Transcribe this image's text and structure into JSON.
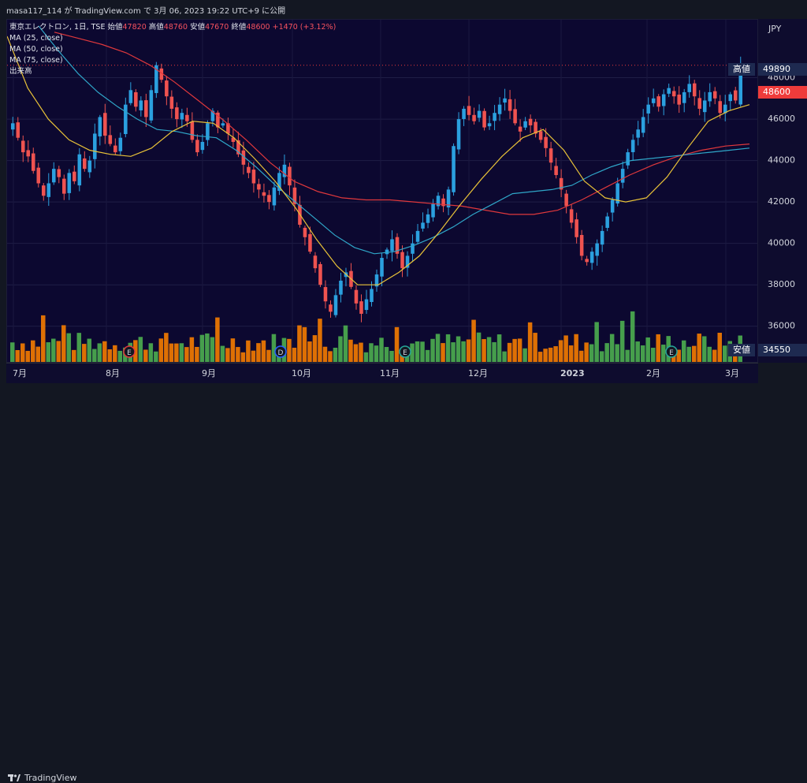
{
  "header": {
    "publish_line": "masa117_114 が TradingView.com で 3月 06, 2023 19:22 UTC+9 に公開"
  },
  "legend": {
    "symbol": "東京エレクトロン, 1日, TSE",
    "open_label": "始値",
    "open_value": "47820",
    "high_label": "高値",
    "high_value": "48760",
    "low_label": "安値",
    "low_value": "47670",
    "close_label": "終値",
    "close_value": "48600",
    "change": "+1470 (+3.12%)",
    "ma1": "MA (25, close)",
    "ma2": "MA (50, close)",
    "ma3": "MA (75, close)",
    "volume": "出来高"
  },
  "axis": {
    "currency": "JPY",
    "tag_high_label": "高値",
    "tag_high_value": "49890",
    "tag_last_value": "48600",
    "tag_low_label": "安値",
    "tag_low_value": "34550"
  },
  "footer": {
    "brand": "TradingView"
  },
  "colors": {
    "up": "#26a69a",
    "down": "#ef5350",
    "bull_body": "#2ba0df",
    "ma25": "#e8c238",
    "ma50": "#2fa6c8",
    "ma75": "#e0383c",
    "vol_up": "#4caf50",
    "vol_down": "#f57c00"
  },
  "chart_data": {
    "type": "candlestick",
    "title": "東京エレクトロン, 1日, TSE",
    "y_ticks": [
      36000,
      38000,
      40000,
      42000,
      44000,
      46000,
      48000
    ],
    "ylim": [
      34200,
      50800
    ],
    "x_ticks": [
      "7月",
      "8月",
      "9月",
      "10月",
      "11月",
      "12月",
      "2023",
      "2月",
      "3月"
    ],
    "close_series_approx": [
      45800,
      45100,
      44400,
      44200,
      43500,
      42900,
      42300,
      42900,
      43600,
      43200,
      42400,
      43400,
      43000,
      44300,
      43600,
      44000,
      45300,
      46100,
      45200,
      44800,
      44400,
      45100,
      46700,
      47400,
      46600,
      46900,
      46100,
      47400,
      48600,
      47900,
      47100,
      46500,
      46000,
      46300,
      45900,
      45000,
      44400,
      44900,
      45800,
      46400,
      45600,
      45800,
      45300,
      44900,
      44300,
      43800,
      43400,
      42900,
      42600,
      42300,
      42000,
      42700,
      43400,
      43800,
      42800,
      41900,
      40900,
      40300,
      39600,
      38800,
      38000,
      37200,
      36700,
      37500,
      38200,
      38600,
      37900,
      37100,
      36600,
      37300,
      37800,
      38500,
      39300,
      39700,
      40200,
      39500,
      38800,
      39400,
      40000,
      40600,
      41000,
      41400,
      41900,
      42300,
      41800,
      42600,
      44700,
      46000,
      46500,
      46200,
      45900,
      46400,
      45600,
      45800,
      46300,
      46700,
      47000,
      46400,
      45800,
      45400,
      45900,
      45700,
      45300,
      45000,
      44600,
      43900,
      43300,
      42600,
      41800,
      41000,
      40300,
      39400,
      39100,
      39600,
      40000,
      40600,
      41300,
      42100,
      42900,
      43600,
      44400,
      45000,
      45500,
      46100,
      46700,
      47000,
      46600,
      47200,
      47500,
      47100,
      46700,
      47300,
      47700,
      47100,
      46500,
      46900,
      47300,
      47000,
      46300,
      46700,
      47200,
      46900,
      48600
    ],
    "ma25_approx": [
      50000,
      47500,
      46000,
      45000,
      44500,
      44300,
      44200,
      44600,
      45400,
      45900,
      45800,
      45100,
      44100,
      43000,
      41700,
      40200,
      38900,
      38000,
      38000,
      38600,
      39400,
      40600,
      41900,
      43100,
      44200,
      45100,
      45500,
      44500,
      43000,
      42200,
      42000,
      42200,
      43200,
      44600,
      45900,
      46400,
      46700
    ],
    "ma50_approx": [
      50500,
      49300,
      48200,
      47300,
      46600,
      46000,
      45500,
      45400,
      45200,
      45100,
      44500,
      43700,
      42800,
      42000,
      41200,
      40400,
      39800,
      39500,
      39600,
      39900,
      40300,
      40800,
      41400,
      41900,
      42400,
      42500,
      42600,
      42800,
      43300,
      43700,
      44000,
      44100,
      44200,
      44300,
      44400,
      44500,
      44600
    ],
    "ma75_approx": [
      50200,
      49900,
      49600,
      49200,
      48600,
      47800,
      46900,
      46000,
      45000,
      43900,
      43000,
      42500,
      42200,
      42100,
      42100,
      42000,
      41900,
      41800,
      41600,
      41400,
      41400,
      41600,
      42100,
      42700,
      43300,
      43800,
      44200,
      44500,
      44700,
      44800
    ],
    "volume_note": "volume bars, orange = down day, green = up day"
  }
}
